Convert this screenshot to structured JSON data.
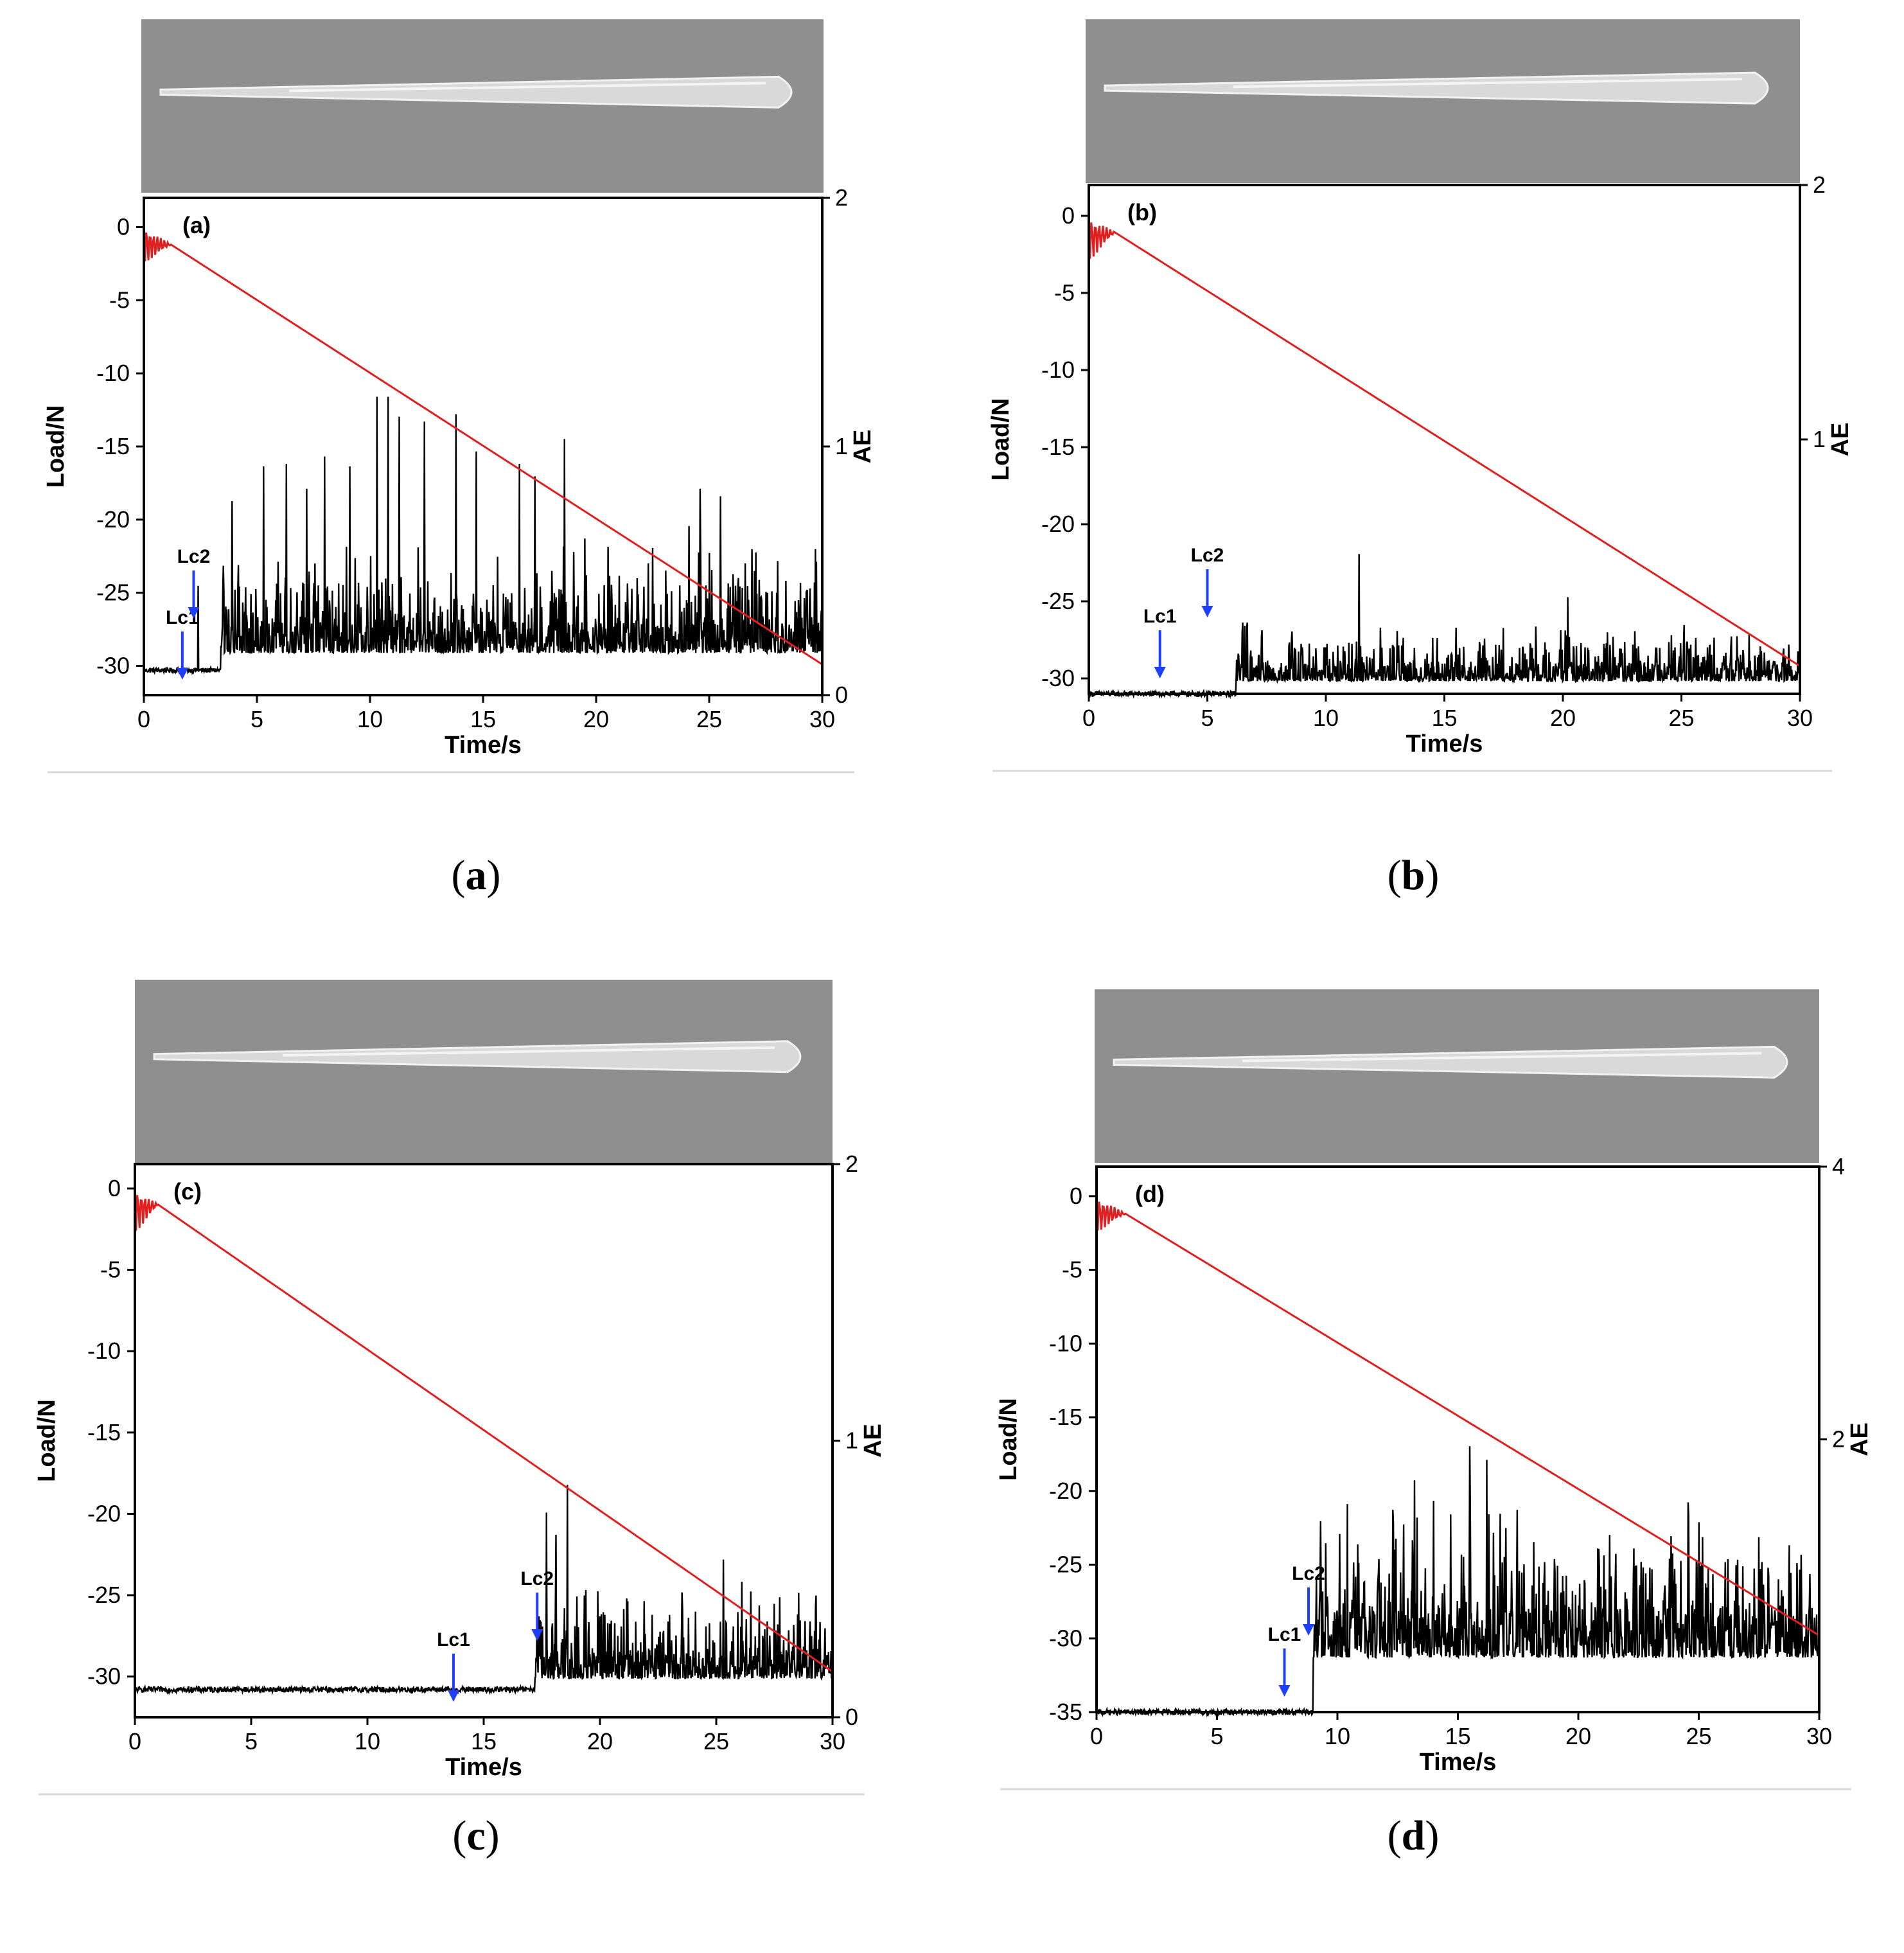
{
  "captions": [
    "a",
    "b",
    "c",
    "d"
  ],
  "chart_data": [
    {
      "type": "line",
      "panel_label": "(a)",
      "xlabel": "Time/s",
      "ylabel_left": "Load/N",
      "ylabel_right": "AE",
      "xlim": [
        0,
        30
      ],
      "x_ticks": [
        0,
        5,
        10,
        15,
        20,
        25,
        30
      ],
      "ylim_left": [
        -32,
        2
      ],
      "y_ticks_left": [
        0,
        -5,
        -10,
        -15,
        -20,
        -25,
        -30
      ],
      "ylim_right": [
        0,
        2
      ],
      "y_ticks_right": [
        0,
        1,
        2
      ],
      "markers": [
        {
          "label": "Lc1",
          "x": 1.7
        },
        {
          "label": "Lc2",
          "x": 2.2
        }
      ],
      "series": [
        {
          "name": "Load",
          "color": "#e02020",
          "start": [
            0.0,
            0
          ],
          "end": [
            30,
            -29.9
          ],
          "osc_until": 1.2,
          "osc_amp": 2.5
        },
        {
          "name": "AE",
          "color": "#000000",
          "onset": 3.4,
          "baseline": 0.1,
          "level": 0.17,
          "noise": 0.13,
          "peaks": [
            [
              2.4,
              0.44
            ],
            [
              3.9,
              0.78
            ],
            [
              5.3,
              0.92
            ],
            [
              6.3,
              0.93
            ],
            [
              7.2,
              0.83
            ],
            [
              8.0,
              0.96
            ],
            [
              9.1,
              0.92
            ],
            [
              10.3,
              1.2
            ],
            [
              10.8,
              1.2
            ],
            [
              11.3,
              1.12
            ],
            [
              12.4,
              1.1
            ],
            [
              13.8,
              1.13
            ],
            [
              14.7,
              0.98
            ],
            [
              16.6,
              0.93
            ],
            [
              17.3,
              0.88
            ],
            [
              18.6,
              1.03
            ],
            [
              19.5,
              0.63
            ],
            [
              20.6,
              0.48
            ],
            [
              22.3,
              0.53
            ],
            [
              24.1,
              0.68
            ],
            [
              24.6,
              0.83
            ],
            [
              25.5,
              0.8
            ],
            [
              26.6,
              0.53
            ],
            [
              28.4,
              0.46
            ],
            [
              29.2,
              0.39
            ]
          ]
        }
      ]
    },
    {
      "type": "line",
      "panel_label": "(b)",
      "xlabel": "Time/s",
      "ylabel_left": "Load/N",
      "ylabel_right": "AE",
      "xlim": [
        0,
        30
      ],
      "x_ticks": [
        0,
        5,
        10,
        15,
        20,
        25,
        30
      ],
      "ylim_left": [
        -31,
        2
      ],
      "y_ticks_left": [
        0,
        -5,
        -10,
        -15,
        -20,
        -25,
        -30
      ],
      "ylim_right": [
        0,
        2
      ],
      "y_ticks_right": [
        1,
        2
      ],
      "markers": [
        {
          "label": "Lc1",
          "x": 3.0
        },
        {
          "label": "Lc2",
          "x": 5.0
        }
      ],
      "series": [
        {
          "name": "Load",
          "color": "#e02020",
          "start": [
            0.0,
            0
          ],
          "end": [
            30,
            -29.2
          ],
          "osc_until": 1.1,
          "osc_amp": 3.0
        },
        {
          "name": "AE",
          "color": "#000000",
          "onset": 6.2,
          "baseline": 0.0,
          "level": 0.05,
          "noise": 0.07,
          "peaks": [
            [
              6.5,
              0.28
            ],
            [
              7.3,
              0.25
            ],
            [
              8.6,
              0.16
            ],
            [
              10.5,
              0.19
            ],
            [
              11.4,
              0.55
            ],
            [
              12.3,
              0.26
            ],
            [
              13.2,
              0.19
            ],
            [
              14.5,
              0.22
            ],
            [
              15.5,
              0.26
            ],
            [
              16.5,
              0.19
            ],
            [
              18.7,
              0.18
            ],
            [
              19.9,
              0.25
            ],
            [
              20.2,
              0.38
            ],
            [
              21.8,
              0.18
            ],
            [
              23.6,
              0.15
            ],
            [
              25.6,
              0.22
            ],
            [
              26.2,
              0.19
            ],
            [
              28.1,
              0.15
            ],
            [
              29.3,
              0.16
            ]
          ]
        }
      ]
    },
    {
      "type": "line",
      "panel_label": "(c)",
      "xlabel": "Time/s",
      "ylabel_left": "Load/N",
      "ylabel_right": "AE",
      "xlim": [
        0,
        30
      ],
      "x_ticks": [
        0,
        5,
        10,
        15,
        20,
        25,
        30
      ],
      "ylim_left": [
        -32.5,
        1.5
      ],
      "y_ticks_left": [
        0,
        -5,
        -10,
        -15,
        -20,
        -25,
        -30
      ],
      "ylim_right": [
        0,
        2
      ],
      "y_ticks_right": [
        0,
        1,
        2
      ],
      "markers": [
        {
          "label": "Lc1",
          "x": 13.7
        },
        {
          "label": "Lc2",
          "x": 17.3
        }
      ],
      "series": [
        {
          "name": "Load",
          "color": "#e02020",
          "start": [
            0.0,
            0
          ],
          "end": [
            30,
            -29.7
          ],
          "osc_until": 1.0,
          "osc_amp": 2.8
        },
        {
          "name": "AE",
          "color": "#000000",
          "onset": 17.2,
          "baseline": 0.1,
          "level": 0.14,
          "noise": 0.1,
          "peaks": [
            [
              17.7,
              0.74
            ],
            [
              18.1,
              0.66
            ],
            [
              18.6,
              0.84
            ],
            [
              19.4,
              0.46
            ],
            [
              20.2,
              0.37
            ],
            [
              21.9,
              0.42
            ],
            [
              23.0,
              0.37
            ],
            [
              24.7,
              0.34
            ],
            [
              25.3,
              0.57
            ],
            [
              26.1,
              0.49
            ],
            [
              27.5,
              0.41
            ],
            [
              28.6,
              0.35
            ],
            [
              29.3,
              0.44
            ]
          ]
        }
      ]
    },
    {
      "type": "line",
      "panel_label": "(d)",
      "xlabel": "Time/s",
      "ylabel_left": "Load/N",
      "ylabel_right": "AE",
      "xlim": [
        0,
        30
      ],
      "x_ticks": [
        0,
        5,
        10,
        15,
        20,
        25,
        30
      ],
      "ylim_left": [
        -35,
        2
      ],
      "y_ticks_left": [
        0,
        -5,
        -10,
        -15,
        -20,
        -25,
        -30,
        -35
      ],
      "ylim_right": [
        0,
        4
      ],
      "y_ticks_right": [
        2,
        4
      ],
      "markers": [
        {
          "label": "Lc1",
          "x": 7.8
        },
        {
          "label": "Lc2",
          "x": 8.8
        }
      ],
      "series": [
        {
          "name": "Load",
          "color": "#e02020",
          "start": [
            0.0,
            0
          ],
          "end": [
            30,
            -29.8
          ],
          "osc_until": 1.2,
          "osc_amp": 2.5
        },
        {
          "name": "AE",
          "color": "#000000",
          "onset": 9.0,
          "baseline": 0.0,
          "level": 0.4,
          "noise": 0.35,
          "peaks": [
            [
              9.3,
              1.4
            ],
            [
              10.3,
              0.9
            ],
            [
              11.8,
              0.95
            ],
            [
              13.2,
              1.7
            ],
            [
              14.0,
              1.55
            ],
            [
              14.7,
              1.45
            ],
            [
              15.5,
              1.95
            ],
            [
              16.2,
              1.85
            ],
            [
              17.0,
              1.35
            ],
            [
              18.6,
              1.1
            ],
            [
              19.5,
              1.0
            ],
            [
              20.8,
              1.2
            ],
            [
              21.3,
              1.3
            ],
            [
              22.3,
              1.2
            ],
            [
              24.0,
              1.05
            ],
            [
              25.2,
              0.7
            ],
            [
              27.1,
              0.8
            ],
            [
              28.5,
              0.85
            ],
            [
              29.6,
              0.78
            ]
          ]
        }
      ]
    }
  ]
}
